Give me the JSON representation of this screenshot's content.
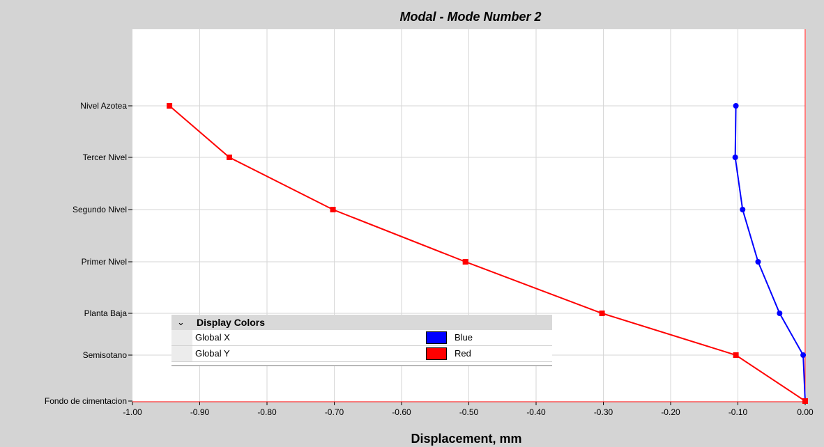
{
  "chart_data": {
    "type": "line",
    "title": "Modal - Mode Number 2",
    "xlabel": "Displacement, mm",
    "ylabel": "",
    "xlim": [
      -1.0,
      0.0
    ],
    "x_ticks": [
      "-1.00",
      "-0.90",
      "-0.80",
      "-0.70",
      "-0.60",
      "-0.50",
      "-0.40",
      "-0.30",
      "-0.20",
      "-0.10",
      "0.00"
    ],
    "levels": [
      "Fondo de cimentacion",
      "Semisotano",
      "Planta Baja",
      "Primer Nivel",
      "Segundo Nivel",
      "Tercer Nivel",
      "Nivel Azotea"
    ],
    "grid": true,
    "series": [
      {
        "name": "Global X",
        "color": "#0000ff",
        "marker": "circle",
        "x": [
          0.0,
          -0.003,
          -0.038,
          -0.07,
          -0.093,
          -0.104,
          -0.103
        ]
      },
      {
        "name": "Global Y",
        "color": "#ff0000",
        "marker": "square",
        "x": [
          0.0,
          -0.103,
          -0.302,
          -0.505,
          -0.702,
          -0.856,
          -0.945
        ]
      }
    ]
  },
  "legend": {
    "header": "Display Colors",
    "chevron_icon": "chevron-down-icon",
    "rows": [
      {
        "name": "Global X",
        "color_name": "Blue",
        "color": "#0000ff"
      },
      {
        "name": "Global Y",
        "color_name": "Red",
        "color": "#ff0000"
      }
    ]
  }
}
